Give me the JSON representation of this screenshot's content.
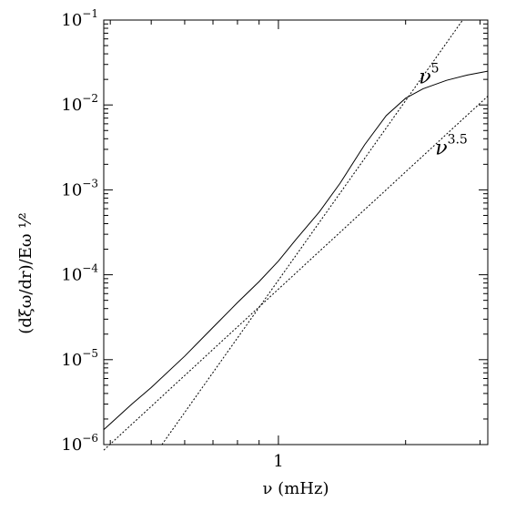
{
  "chart_data": {
    "type": "line",
    "title": "",
    "xlabel": "ν (mHz)",
    "ylabel": "(dξω/dr)/Eω ¹⁄²",
    "xscale": "log",
    "yscale": "log",
    "xlim": [
      0.386,
      3.13
    ],
    "ylim": [
      1e-06,
      0.1
    ],
    "x_ticks": [
      {
        "value": 1,
        "label": "1"
      }
    ],
    "y_ticks": [
      {
        "value": 1e-06,
        "base": "10",
        "exp": "−6"
      },
      {
        "value": 1e-05,
        "base": "10",
        "exp": "−5"
      },
      {
        "value": 0.0001,
        "base": "10",
        "exp": "−4"
      },
      {
        "value": 0.001,
        "base": "10",
        "exp": "−3"
      },
      {
        "value": 0.01,
        "base": "10",
        "exp": "−2"
      },
      {
        "value": 0.1,
        "base": "10",
        "exp": "−1"
      }
    ],
    "grid": false,
    "series": [
      {
        "style": "solid",
        "x": [
          0.386,
          0.45,
          0.5,
          0.6,
          0.7,
          0.8,
          0.9,
          1.0,
          1.1,
          1.25,
          1.4,
          1.6,
          1.8,
          2.0,
          2.2,
          2.5,
          2.8,
          3.13
        ],
        "y": [
          1.5e-06,
          3e-06,
          4.7e-06,
          1.1e-05,
          2.4e-05,
          4.7e-05,
          8.3e-05,
          0.000145,
          0.00026,
          0.00055,
          0.0012,
          0.0034,
          0.0075,
          0.012,
          0.0155,
          0.0195,
          0.0225,
          0.025
        ]
      },
      {
        "style": "dotted",
        "x": [
          0.386,
          3.13
        ],
        "y": [
          8.6e-07,
          0.0127
        ]
      },
      {
        "style": "dotted",
        "x": [
          0.53,
          2.73
        ],
        "y": [
          1e-06,
          0.1
        ]
      }
    ],
    "annotations": [
      {
        "base": "ν",
        "exp": "5",
        "x": 2.15,
        "y": 0.018
      },
      {
        "base": "ν",
        "exp": "3.5",
        "x": 2.35,
        "y": 0.0026
      }
    ]
  }
}
